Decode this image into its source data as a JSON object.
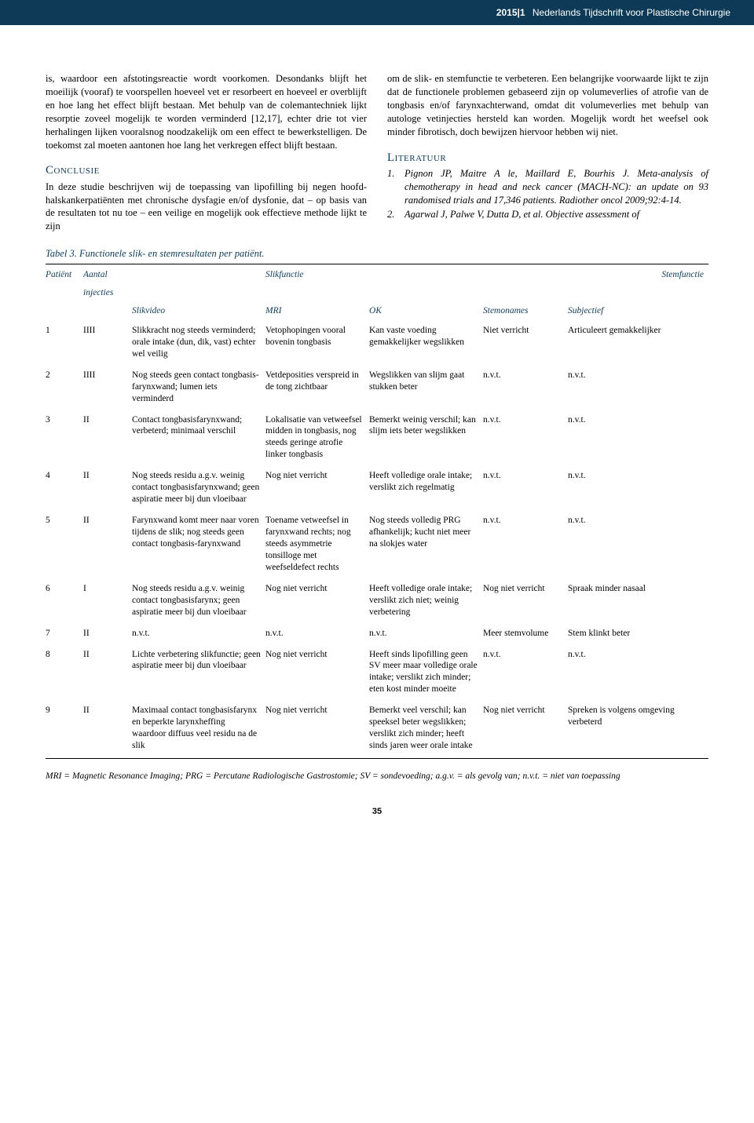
{
  "header": {
    "issue": "2015|1",
    "journal": "Nederlands Tijdschrift voor Plastische Chirurgie"
  },
  "leftCol": {
    "para1": "is, waardoor een afstotingsreactie wordt voorkomen. Desondanks blijft het moeilijk (vooraf) te voorspellen hoeveel vet er resorbeert en hoeveel er overblijft en hoe lang het effect blijft bestaan. Met behulp van de colemantechniek lijkt resorptie zoveel mogelijk te worden verminderd [12,17], echter drie tot vier herhalingen lijken vooralsnog noodzakelijk om een effect te bewerkstelligen. De toekomst zal moeten aantonen hoe lang het verkregen effect blijft bestaan.",
    "conclusieTitle": "Conclusie",
    "conclusieText": "In deze studie beschrijven wij de toepassing van lipofilling bij negen hoofd-halskankerpatiënten met chronische dysfagie en/of dysfonie, dat – op basis van de resultaten tot nu toe – een veilige en mogelijk ook effectieve methode lijkt te zijn"
  },
  "rightCol": {
    "para1": "om de slik- en stemfunctie te verbeteren. Een belangrijke voorwaarde lijkt te zijn dat de functionele problemen gebaseerd zijn op volumeverlies of atrofie van de tongbasis en/of farynxachterwand, omdat dit volumeverlies met behulp van autologe vetinjecties hersteld kan worden. Mogelijk wordt het weefsel ook minder fibrotisch, doch bewijzen hiervoor hebben wij niet.",
    "literatuurTitle": "Literatuur",
    "refs": [
      {
        "num": "1.",
        "text": "Pignon JP, Maitre A le, Maillard E, Bourhis J. Meta-analysis of chemotherapy in head and neck cancer (MACH-NC): an update on 93 randomised trials and 17,346 patients. Radiother oncol 2009;92:4-14."
      },
      {
        "num": "2.",
        "text": "Agarwal J, Palwe V, Dutta D, et al. Objective assessment of"
      }
    ]
  },
  "table": {
    "caption": "Tabel 3. Functionele slik- en stemresultaten per patiënt.",
    "colWidths": [
      "48px",
      "62px",
      "170px",
      "132px",
      "145px",
      "108px",
      "auto"
    ],
    "topHeaders": {
      "patient": "Patiënt",
      "aantal1": "Aantal",
      "aantal2": "injecties",
      "slik": "Slikfunctie",
      "stem": "Stemfunctie"
    },
    "subHeaders": [
      "",
      "",
      "Slikvideo",
      "MRI",
      "OK",
      "Stemonames",
      "Subjectief"
    ],
    "rows": [
      {
        "id": "1",
        "inj": "IIII",
        "slikvideo": "Slikkracht nog steeds verminderd; orale intake (dun, dik, vast) echter wel veilig",
        "mri": "Vetophopingen vooral bovenin tongbasis",
        "ok": "Kan vaste voeding gemakkelijker wegslikken",
        "stemonames": "Niet verricht",
        "subjectief": "Articuleert gemakkelijker"
      },
      {
        "id": "2",
        "inj": "IIII",
        "slikvideo": "Nog steeds geen contact tongbasis-farynxwand; lumen iets verminderd",
        "mri": "Vetdeposities verspreid in de tong zichtbaar",
        "ok": "Wegslikken van slijm gaat stukken beter",
        "stemonames": "n.v.t.",
        "subjectief": "n.v.t."
      },
      {
        "id": "3",
        "inj": "II",
        "slikvideo": "Contact tongbasisfarynxwand; verbeterd; minimaal verschil",
        "mri": "Lokalisatie van vetweefsel midden in tongbasis, nog steeds geringe atrofie linker tongbasis",
        "ok": "Bemerkt weinig verschil; kan slijm iets beter wegslikken",
        "stemonames": "n.v.t.",
        "subjectief": "n.v.t."
      },
      {
        "id": "4",
        "inj": "II",
        "slikvideo": "Nog steeds residu a.g.v. weinig contact tongbasisfarynxwand; geen aspiratie meer bij dun vloeibaar",
        "mri": "Nog niet verricht",
        "ok": "Heeft volledige orale intake; verslikt zich regelmatig",
        "stemonames": "n.v.t.",
        "subjectief": "n.v.t."
      },
      {
        "id": "5",
        "inj": "II",
        "slikvideo": "Farynxwand komt meer naar voren tijdens de slik; nog steeds geen contact tongbasis-farynxwand",
        "mri": "Toename vetweefsel in farynxwand rechts; nog steeds asymmetrie tonsilloge met weefseldefect rechts",
        "ok": "Nog steeds volledig PRG afhankelijk; kucht niet meer na slokjes water",
        "stemonames": "n.v.t.",
        "subjectief": "n.v.t."
      },
      {
        "id": "6",
        "inj": "I",
        "slikvideo": "Nog steeds residu a.g.v. weinig contact tongbasisfarynx; geen aspiratie meer bij dun vloeibaar",
        "mri": "Nog niet verricht",
        "ok": "Heeft volledige orale intake; verslikt zich niet; weinig verbetering",
        "stemonames": "Nog niet verricht",
        "subjectief": "Spraak minder nasaal"
      },
      {
        "id": "7",
        "inj": "II",
        "slikvideo": "n.v.t.",
        "mri": "n.v.t.",
        "ok": "n.v.t.",
        "stemonames": "Meer stemvolume",
        "subjectief": "Stem klinkt beter"
      },
      {
        "id": "8",
        "inj": "II",
        "slikvideo": "Lichte verbetering slikfunctie; geen aspiratie meer bij dun vloeibaar",
        "mri": "Nog niet verricht",
        "ok": "Heeft sinds lipofilling geen SV meer maar volledige orale intake; verslikt zich minder; eten kost minder moeite",
        "stemonames": "n.v.t.",
        "subjectief": "n.v.t."
      },
      {
        "id": "9",
        "inj": "II",
        "slikvideo": "Maximaal contact tongbasisfarynx en beperkte larynxheffing waardoor diffuus veel residu na de slik",
        "mri": "Nog niet verricht",
        "ok": "Bemerkt veel verschil; kan speeksel beter wegslikken; verslikt zich minder; heeft sinds jaren weer orale intake",
        "stemonames": "Nog niet verricht",
        "subjectief": "Spreken is volgens omgeving verbeterd"
      }
    ],
    "legend": "MRI = Magnetic Resonance Imaging; PRG = Percutane Radiologische Gastrostomie; SV = sondevoeding; a.g.v. = als gevolg van; n.v.t. = niet van toepassing"
  },
  "pageNumber": "35",
  "colors": {
    "brand": "#0e3a57",
    "text": "#000000",
    "background": "#ffffff"
  },
  "typography": {
    "bodyFontSizePt": 9.5,
    "headingFontSizePt": 11,
    "tableFontSizePt": 8.5,
    "fontFamilyBody": "Georgia/serif",
    "fontFamilyHeader": "Arial/sans-serif"
  }
}
